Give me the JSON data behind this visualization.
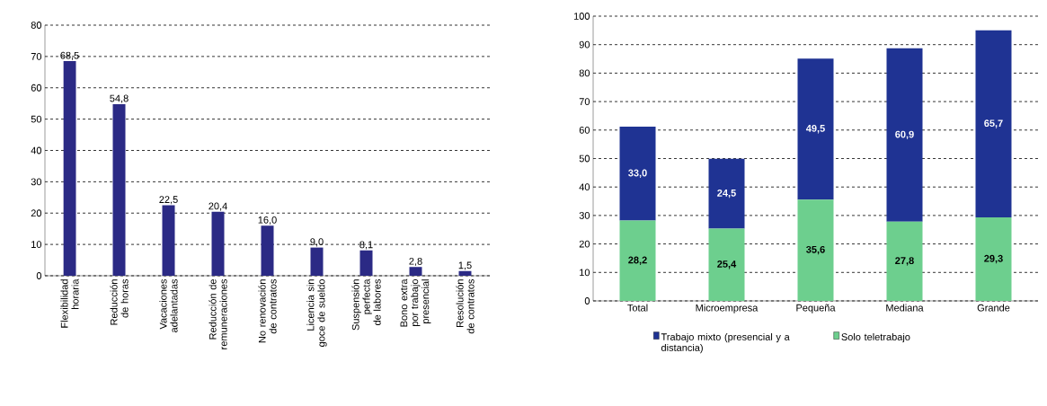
{
  "chart_data": [
    {
      "type": "bar",
      "categories": [
        "Flexibilidad horaria",
        "Reducción de horas",
        "Vacaciones adelantadas",
        "Reducción de remuneraciones",
        "No renovación de contratos",
        "Licencia sin goce de sueldo",
        "Suspensión perfecta de labores",
        "Bono extra por trabajo presencial",
        "Resolución de contratos"
      ],
      "values": [
        68.5,
        54.8,
        22.5,
        20.4,
        16.0,
        9.0,
        8.1,
        2.8,
        1.5
      ],
      "value_labels": [
        "68,5",
        "54,8",
        "22,5",
        "20,4",
        "16,0",
        "9,0",
        "8,1",
        "2,8",
        "1,5"
      ],
      "color": "#2b2a85",
      "ylim": [
        0,
        80
      ],
      "yticks": [
        0,
        10,
        20,
        30,
        40,
        50,
        60,
        70,
        80
      ],
      "grid": "y"
    },
    {
      "type": "bar",
      "stacked": true,
      "categories": [
        "Total",
        "Microempresa",
        "Pequeña",
        "Mediana",
        "Grande"
      ],
      "series": [
        {
          "name": "Solo teletrabajo",
          "color": "#6dcf8e",
          "values": [
            28.2,
            25.4,
            35.6,
            27.8,
            29.3
          ],
          "value_labels": [
            "28,2",
            "25,4",
            "35,6",
            "27,8",
            "29,3"
          ]
        },
        {
          "name": "Trabajo mixto (presencial y a distancia)",
          "color": "#1f3393",
          "values": [
            33.0,
            24.5,
            49.5,
            60.9,
            65.7
          ],
          "value_labels": [
            "33,0",
            "24,5",
            "49,5",
            "60,9",
            "65,7"
          ]
        }
      ],
      "ylim": [
        0,
        100
      ],
      "yticks": [
        0,
        10,
        20,
        30,
        40,
        50,
        60,
        70,
        80,
        90,
        100
      ],
      "grid": "y",
      "legend": "bottom"
    }
  ]
}
